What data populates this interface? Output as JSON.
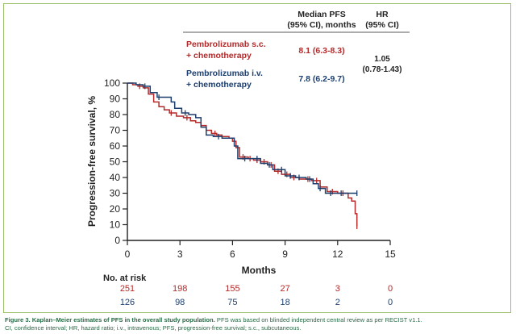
{
  "header": {
    "median_pfs_line1": "Median PFS",
    "median_pfs_line2": "(95% CI), months",
    "hr_line1": "HR",
    "hr_line2": "(95% CI)"
  },
  "colors": {
    "sc": "#b22a2a",
    "iv": "#1d3f6e",
    "axis": "#222222",
    "caption": "#2a6a46",
    "frame": "#9bbf6a"
  },
  "arms": [
    {
      "name_line1": "Pembrolizumab s.c.",
      "name_line2": "+ chemotherapy",
      "median": "8.1 (6.3-8.3)"
    },
    {
      "name_line1": "Pembrolizumab i.v.",
      "name_line2": "+ chemotherapy",
      "median": "7.8 (6.2-9.7)"
    }
  ],
  "hr": {
    "value": "1.05",
    "ci": "(0.78-1.43)"
  },
  "risk_table": {
    "title": "No. at risk",
    "rows": [
      {
        "values": [
          "251",
          "198",
          "155",
          "27",
          "3",
          "0"
        ]
      },
      {
        "values": [
          "126",
          "98",
          "75",
          "18",
          "2",
          "0"
        ]
      }
    ]
  },
  "chart_data": {
    "type": "line",
    "title": "Kaplan-Meier estimates of PFS",
    "xlabel": "Months",
    "ylabel": "Progression-free survival, %",
    "xlim": [
      0,
      15
    ],
    "ylim": [
      0,
      100
    ],
    "xticks": [
      "0",
      "3",
      "6",
      "9",
      "12",
      "15"
    ],
    "yticks": [
      "0",
      "10",
      "20",
      "30",
      "40",
      "50",
      "60",
      "70",
      "80",
      "90",
      "100"
    ],
    "series": [
      {
        "name": "Pembrolizumab s.c. + chemotherapy",
        "color": "#b22a2a",
        "points": [
          [
            0,
            100
          ],
          [
            0.3,
            99
          ],
          [
            0.6,
            98
          ],
          [
            0.9,
            97
          ],
          [
            1.2,
            93
          ],
          [
            1.5,
            88
          ],
          [
            1.8,
            85
          ],
          [
            2.1,
            83
          ],
          [
            2.4,
            81
          ],
          [
            2.8,
            79
          ],
          [
            3.2,
            78
          ],
          [
            3.6,
            76
          ],
          [
            3.9,
            75
          ],
          [
            4.2,
            73
          ],
          [
            4.5,
            70
          ],
          [
            4.8,
            68
          ],
          [
            5.1,
            67
          ],
          [
            5.4,
            66
          ],
          [
            5.8,
            65
          ],
          [
            6.0,
            63
          ],
          [
            6.2,
            59
          ],
          [
            6.4,
            53
          ],
          [
            6.9,
            52
          ],
          [
            7.2,
            51
          ],
          [
            7.6,
            50
          ],
          [
            8.0,
            48
          ],
          [
            8.4,
            44
          ],
          [
            8.8,
            42
          ],
          [
            9.3,
            40
          ],
          [
            9.8,
            39
          ],
          [
            10.5,
            38
          ],
          [
            11.0,
            34
          ],
          [
            11.4,
            31
          ],
          [
            12.0,
            30
          ],
          [
            12.6,
            27
          ],
          [
            12.8,
            25
          ],
          [
            13.0,
            17
          ],
          [
            13.1,
            9
          ]
        ],
        "censors": [
          [
            0.7,
            98
          ],
          [
            2.5,
            81
          ],
          [
            3.4,
            78
          ],
          [
            5.0,
            68
          ],
          [
            6.6,
            53
          ],
          [
            7.0,
            52
          ],
          [
            7.4,
            51
          ],
          [
            7.8,
            50
          ],
          [
            8.2,
            48
          ],
          [
            8.6,
            44
          ],
          [
            9.1,
            42
          ],
          [
            9.5,
            40
          ],
          [
            10.3,
            39
          ],
          [
            10.8,
            38
          ],
          [
            11.7,
            31
          ],
          [
            12.3,
            30
          ],
          [
            13.1,
            9
          ]
        ]
      },
      {
        "name": "Pembrolizumab i.v. + chemotherapy",
        "color": "#1d3f6e",
        "points": [
          [
            0,
            100
          ],
          [
            0.5,
            99
          ],
          [
            0.9,
            98
          ],
          [
            1.3,
            94
          ],
          [
            1.7,
            91
          ],
          [
            2.2,
            91
          ],
          [
            2.5,
            88
          ],
          [
            2.7,
            84
          ],
          [
            3.1,
            81
          ],
          [
            3.5,
            80
          ],
          [
            3.9,
            78
          ],
          [
            4.2,
            72
          ],
          [
            4.5,
            67
          ],
          [
            4.9,
            66
          ],
          [
            5.4,
            65
          ],
          [
            5.8,
            65
          ],
          [
            6.1,
            60
          ],
          [
            6.3,
            52
          ],
          [
            6.8,
            52
          ],
          [
            7.2,
            52
          ],
          [
            7.6,
            49
          ],
          [
            8.0,
            48
          ],
          [
            8.3,
            45
          ],
          [
            8.7,
            45
          ],
          [
            9.0,
            41
          ],
          [
            9.6,
            40
          ],
          [
            10.2,
            39
          ],
          [
            10.6,
            36
          ],
          [
            10.9,
            33
          ],
          [
            11.3,
            30
          ],
          [
            13.1,
            30
          ]
        ],
        "censors": [
          [
            1.0,
            98
          ],
          [
            1.8,
            91
          ],
          [
            3.3,
            81
          ],
          [
            5.2,
            66
          ],
          [
            6.7,
            52
          ],
          [
            7.4,
            52
          ],
          [
            8.1,
            48
          ],
          [
            8.8,
            45
          ],
          [
            9.3,
            41
          ],
          [
            9.8,
            40
          ],
          [
            10.4,
            39
          ],
          [
            11.0,
            33
          ],
          [
            11.6,
            30
          ],
          [
            12.2,
            30
          ],
          [
            13.1,
            30
          ]
        ]
      }
    ]
  },
  "caption": {
    "label": "Figure 3.",
    "title": "Kaplan–Meier estimates of PFS in the overall study population.",
    "body": "PFS was based on blinded independent central review as per RECIST v1.1.",
    "line2": "CI, confidence interval; HR, hazard ratio; i.v., intravenous; PFS, progression-free survival; s.c., subcutaneous."
  }
}
